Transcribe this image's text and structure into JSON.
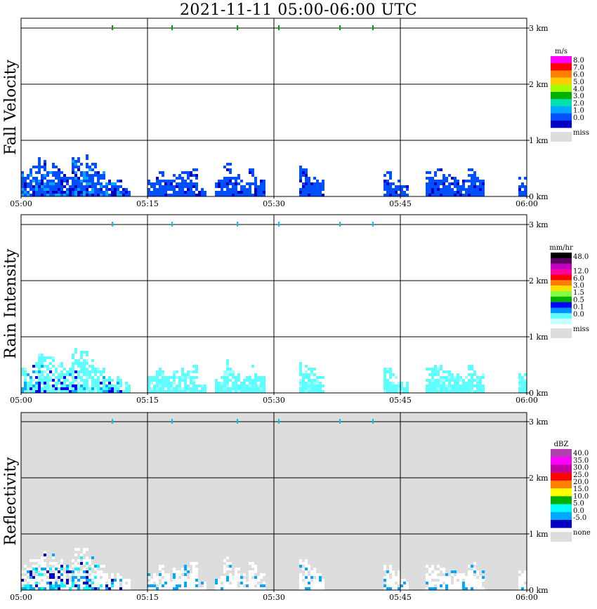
{
  "title": "2021-11-11   05:00-06:00 UTC",
  "chart_data": [
    {
      "type": "heatmap",
      "name": "Fall Velocity",
      "x_ticks": [
        "05:00",
        "05:15",
        "05:30",
        "05:45",
        "06:00"
      ],
      "y_ticks": [
        "0 km",
        "1 km",
        "2 km",
        "3 km"
      ],
      "ylim": [
        0,
        3.2
      ],
      "grid": true,
      "background": "#ffffff",
      "colorbar": {
        "unit": "m/s",
        "labels": [
          "8.0",
          "7.0",
          "6.0",
          "5.0",
          "4.0",
          "3.0",
          "2.0",
          "1.0",
          "0.0"
        ],
        "colors": [
          "#ff00ff",
          "#ff0000",
          "#ff7f00",
          "#ffcc00",
          "#a0ff00",
          "#00b000",
          "#00e0b0",
          "#00a8ff",
          "#0050ff",
          "#0000c0"
        ],
        "missing_label": "miss",
        "missing_color": "#dddddd"
      },
      "echo": {
        "top_km": [
          0.45,
          0.55,
          0.7,
          0.65,
          0.55,
          0.45,
          0.8,
          0.75,
          0.6,
          0.45,
          0.3,
          0.3,
          0.2,
          0.0,
          0.0,
          0.3,
          0.45,
          0.3,
          0.4,
          0.45,
          0.5,
          0.15,
          0.0,
          0.3,
          0.6,
          0.4,
          0.3,
          0.5,
          0.3,
          0.0,
          0.0,
          0.0,
          0.0,
          0.55,
          0.45,
          0.3,
          0.0,
          0.0,
          0.0,
          0.0,
          0.0,
          0.0,
          0.0,
          0.45,
          0.35,
          0.2,
          0.0,
          0.0,
          0.45,
          0.5,
          0.4,
          0.35,
          0.3,
          0.5,
          0.35,
          0.0,
          0.0,
          0.0,
          0.0,
          0.35
        ],
        "colors": [
          "#0050ff",
          "#0000c0",
          "#00a8ff"
        ],
        "level": 0.6
      }
    },
    {
      "type": "heatmap",
      "name": "Rain Intensity",
      "x_ticks": [
        "05:00",
        "05:15",
        "05:30",
        "05:45",
        "06:00"
      ],
      "y_ticks": [
        "0 km",
        "1 km",
        "2 km",
        "3 km"
      ],
      "ylim": [
        0,
        3.2
      ],
      "grid": true,
      "background": "#ffffff",
      "colorbar": {
        "unit": "mm/hr",
        "labels": [
          "48.0",
          "",
          "12.0",
          "6.0",
          "3.0",
          "1.5",
          "0.5",
          "0.1",
          "0.0"
        ],
        "colors": [
          "#000000",
          "#600060",
          "#c000c0",
          "#ff00a0",
          "#ff0000",
          "#ff8000",
          "#ffe000",
          "#80ff40",
          "#00b000",
          "#0000ff",
          "#0090ff",
          "#60ffff",
          "#c8ffff"
        ],
        "missing_label": "miss",
        "missing_color": "#dddddd"
      },
      "echo": {
        "top_km": [
          0.45,
          0.55,
          0.7,
          0.65,
          0.55,
          0.45,
          0.8,
          0.75,
          0.6,
          0.45,
          0.3,
          0.3,
          0.2,
          0.0,
          0.0,
          0.3,
          0.45,
          0.3,
          0.4,
          0.45,
          0.5,
          0.15,
          0.0,
          0.3,
          0.6,
          0.4,
          0.3,
          0.5,
          0.3,
          0.0,
          0.0,
          0.0,
          0.0,
          0.55,
          0.45,
          0.3,
          0.0,
          0.0,
          0.0,
          0.0,
          0.0,
          0.0,
          0.0,
          0.45,
          0.35,
          0.2,
          0.0,
          0.0,
          0.45,
          0.5,
          0.4,
          0.35,
          0.3,
          0.5,
          0.35,
          0.0,
          0.0,
          0.0,
          0.0,
          0.35
        ],
        "colors": [
          "#60ffff",
          "#a0ffff",
          "#00b0ff",
          "#0000ff"
        ],
        "level": 0.55
      }
    },
    {
      "type": "heatmap",
      "name": "Reflectivity",
      "x_ticks": [
        "05:00",
        "05:15",
        "05:30",
        "05:45",
        "06:00"
      ],
      "y_ticks": [
        "0 km",
        "1 km",
        "2 km",
        "3 km"
      ],
      "ylim": [
        0,
        3.2
      ],
      "grid": true,
      "background": "#dddddd",
      "colorbar": {
        "unit": "dBZ",
        "labels": [
          "40.0",
          "35.0",
          "30.0",
          "25.0",
          "20.0",
          "15.0",
          "10.0",
          "5.0",
          "0.0",
          "-5.0"
        ],
        "colors": [
          "#b040b0",
          "#ff00ff",
          "#c000a0",
          "#ff0000",
          "#ff8000",
          "#ffff00",
          "#00b000",
          "#00ffff",
          "#00a8ff",
          "#0000c0"
        ],
        "missing_label": "none",
        "missing_color": "#dddddd"
      },
      "echo": {
        "top_km": [
          0.45,
          0.55,
          0.7,
          0.65,
          0.55,
          0.45,
          0.8,
          0.75,
          0.6,
          0.45,
          0.3,
          0.3,
          0.2,
          0.0,
          0.0,
          0.3,
          0.45,
          0.3,
          0.4,
          0.45,
          0.5,
          0.15,
          0.0,
          0.3,
          0.6,
          0.4,
          0.3,
          0.5,
          0.3,
          0.0,
          0.0,
          0.0,
          0.0,
          0.55,
          0.45,
          0.3,
          0.0,
          0.0,
          0.0,
          0.0,
          0.0,
          0.0,
          0.0,
          0.45,
          0.35,
          0.2,
          0.0,
          0.0,
          0.45,
          0.5,
          0.4,
          0.35,
          0.3,
          0.5,
          0.35,
          0.0,
          0.0,
          0.0,
          0.0,
          0.35
        ],
        "colors": [
          "#ffffff",
          "#00a8ff",
          "#00ffff",
          "#0000c0"
        ],
        "level": 0.6
      }
    }
  ]
}
